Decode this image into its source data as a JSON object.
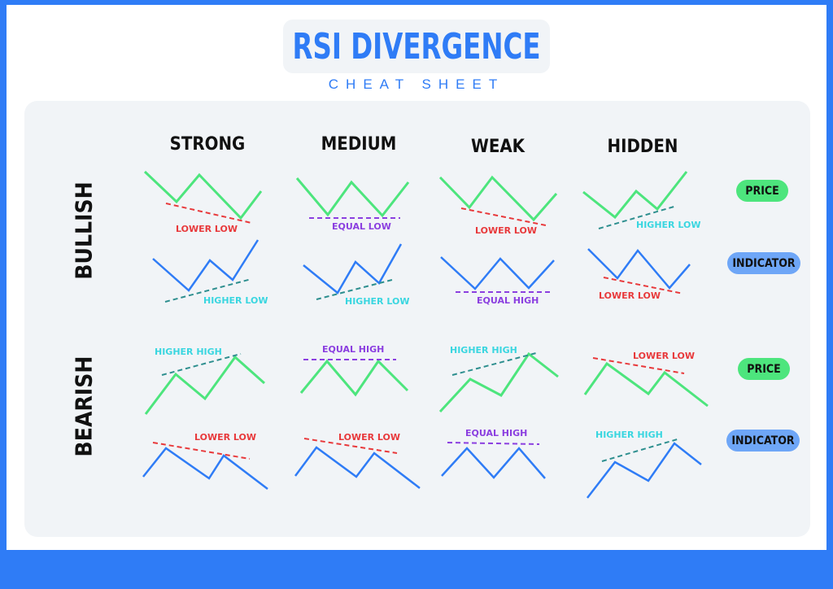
{
  "colors": {
    "background": "#2f7cf6",
    "accent": "#2f7cf6",
    "price_line": "#4de57d",
    "indicator_line": "#2f7cf6",
    "lower_low": "#e8393b",
    "higher_low": "#3ad6e0",
    "equal": "#8b3fe0",
    "trend_dashed": "#2e8f8f",
    "price_pill": "#4de57d",
    "indicator_pill": "#6ea6f7"
  },
  "header": {
    "title": "RSI DIVERGENCE",
    "subtitle": "CHEAT SHEET"
  },
  "columns": [
    "STRONG",
    "MEDIUM",
    "WEAK",
    "HIDDEN"
  ],
  "sections": [
    {
      "label": "BULLISH",
      "price_label": "PRICE",
      "indicator_label": "INDICATOR"
    },
    {
      "label": "BEARISH",
      "price_label": "PRICE",
      "indicator_label": "INDICATOR"
    }
  ],
  "annotations": {
    "bullish_price": [
      "LOWER LOW",
      "EQUAL LOW",
      "LOWER LOW",
      "HIGHER LOW"
    ],
    "bullish_indicator": [
      "HIGHER LOW",
      "HIGHER LOW",
      "EQUAL HIGH",
      "LOWER LOW"
    ],
    "bearish_price": [
      "HIGHER HIGH",
      "EQUAL HIGH",
      "HIGHER HIGH",
      "LOWER LOW"
    ],
    "bearish_indicator": [
      "LOWER LOW",
      "LOWER LOW",
      "EQUAL HIGH",
      "HIGHER HIGH"
    ]
  }
}
